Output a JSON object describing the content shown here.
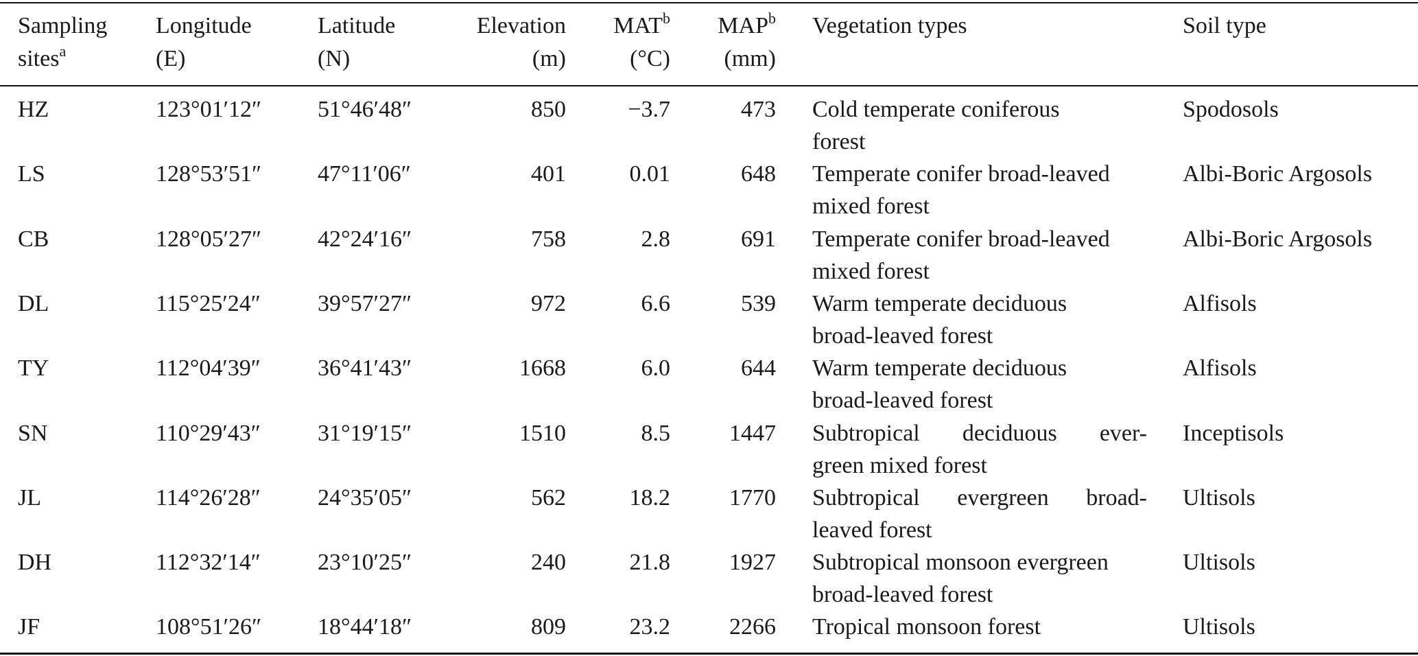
{
  "table": {
    "headers": [
      {
        "lines": [
          {
            "text": "Sampling"
          },
          {
            "text": "sites",
            "sup": "a"
          }
        ]
      },
      {
        "lines": [
          {
            "text": "Longitude"
          },
          {
            "text": "(E)"
          }
        ]
      },
      {
        "lines": [
          {
            "text": "Latitude"
          },
          {
            "text": "(N)"
          }
        ]
      },
      {
        "lines": [
          {
            "text": "Elevation"
          },
          {
            "text": "(m)"
          }
        ]
      },
      {
        "lines": [
          {
            "text": "MAT",
            "sup": "b"
          },
          {
            "text": "(°C)"
          }
        ]
      },
      {
        "lines": [
          {
            "text": "MAP",
            "sup": "b"
          },
          {
            "text": "(mm)"
          }
        ]
      },
      {
        "lines": [
          {
            "text": "Vegetation types"
          }
        ]
      },
      {
        "lines": [
          {
            "text": "Soil type"
          }
        ]
      }
    ],
    "rows": [
      [
        "HZ",
        "123°01′12″",
        "51°46′48″",
        "850",
        "−3.7",
        "473",
        [
          "Cold temperate coniferous",
          "forest"
        ],
        "Spodosols"
      ],
      [
        "LS",
        "128°53′51″",
        "47°11′06″",
        "401",
        "0.01",
        "648",
        [
          "Temperate conifer broad-leaved",
          "mixed forest"
        ],
        "Albi-Boric Argosols"
      ],
      [
        "CB",
        "128°05′27″",
        "42°24′16″",
        "758",
        "2.8",
        "691",
        [
          "Temperate conifer broad-leaved",
          "mixed forest"
        ],
        "Albi-Boric Argosols"
      ],
      [
        "DL",
        "115°25′24″",
        "39°57′27″",
        "972",
        "6.6",
        "539",
        [
          "Warm temperate deciduous",
          "broad-leaved forest"
        ],
        "Alfisols"
      ],
      [
        "TY",
        "112°04′39″",
        "36°41′43″",
        "1668",
        "6.0",
        "644",
        [
          "Warm temperate deciduous",
          "broad-leaved forest"
        ],
        "Alfisols"
      ],
      [
        "SN",
        "110°29′43″",
        "31°19′15″",
        "1510",
        "8.5",
        "1447",
        [
          "Subtropical deciduous ever-",
          "green mixed forest"
        ],
        "Inceptisols"
      ],
      [
        "JL",
        "114°26′28″",
        "24°35′05″",
        "562",
        "18.2",
        "1770",
        [
          "Subtropical evergreen broad-",
          "leaved forest"
        ],
        "Ultisols"
      ],
      [
        "DH",
        "112°32′14″",
        "23°10′25″",
        "240",
        "21.8",
        "1927",
        [
          "Subtropical monsoon evergreen",
          "broad-leaved forest"
        ],
        "Ultisols"
      ],
      [
        "JF",
        "108°51′26″",
        "18°44′18″",
        "809",
        "23.2",
        "2266",
        [
          "Tropical monsoon forest"
        ],
        "Ultisols"
      ]
    ]
  }
}
